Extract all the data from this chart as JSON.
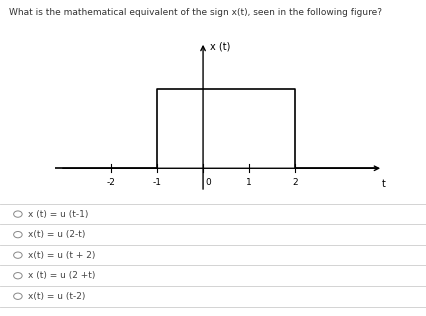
{
  "title_text": "What is the mathematical equivalent of the sign x(t), seen in the following figure?",
  "ylabel": "x (t)",
  "xlabel": "t",
  "signal_x": [
    -3.5,
    -1,
    -1,
    2,
    2,
    3.8
  ],
  "signal_y": [
    0,
    0,
    1,
    1,
    0,
    0
  ],
  "xlim": [
    -3.2,
    4.0
  ],
  "ylim": [
    -0.35,
    1.65
  ],
  "xticks": [
    -2,
    -1,
    0,
    1,
    2
  ],
  "options": [
    "x (t) = u (t-1)",
    "x(t) = u (2-t)",
    "x(t) = u (t + 2)",
    "x (t) = u (2 +t)",
    "x(t) = u (t-2)"
  ],
  "bg_color": "#ffffff",
  "line_color": "#000000",
  "text_color": "#333333",
  "option_text_color": "#444444",
  "font_size_title": 6.5,
  "font_size_options": 6.5,
  "font_size_ticks": 6.5,
  "font_size_ylabel": 7,
  "divider_color": "#cccccc",
  "radio_edge_color": "#888888"
}
